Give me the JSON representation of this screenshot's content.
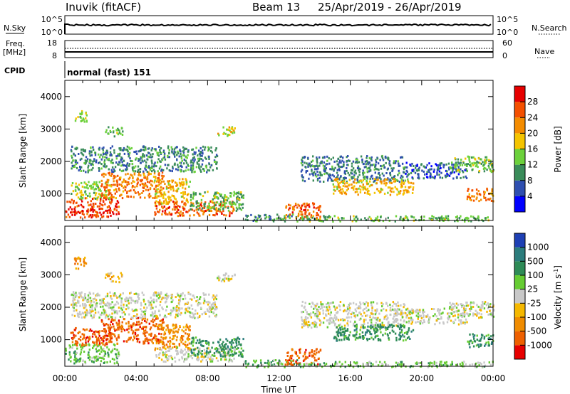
{
  "header": {
    "station": "Inuvik (fitACF)",
    "beam": "Beam 13",
    "dates": "25/Apr/2019 - 26/Apr/2019"
  },
  "nsky": {
    "label": "N.Sky",
    "ticks": [
      "10^5",
      "10^0"
    ],
    "right_label": "N.Search",
    "right_ticks": [
      "10^5",
      "10^0"
    ]
  },
  "freq": {
    "label_line1": "Freq.",
    "label_line2": "[MHz]",
    "ticks": [
      "18",
      "8"
    ],
    "right_label": "Nave",
    "right_ticks": [
      "60",
      "0"
    ]
  },
  "cpid": {
    "label": "CPID",
    "mode": "normal (fast) 151"
  },
  "colors": {
    "power_scale": [
      "#0000ff",
      "#2f4fb0",
      "#3a8c5a",
      "#6cd13c",
      "#f4c400",
      "#f48c00",
      "#f45000",
      "#e60000"
    ],
    "velocity_scale": [
      "#1e40b4",
      "#2c7d7d",
      "#2e8b57",
      "#66cc33",
      "#c8c8c8",
      "#f5b800",
      "#f08c00",
      "#ee6000",
      "#e60000"
    ]
  },
  "chart_data": [
    {
      "type": "heatmap",
      "name": "power-panel",
      "xlabel": "",
      "ylabel": "Slant Range [km]",
      "x_ticks": [
        "00:00",
        "04:00",
        "08:00",
        "12:00",
        "16:00",
        "20:00",
        "00:00"
      ],
      "xlim_hours": [
        0,
        24
      ],
      "y_ticks": [
        1000,
        2000,
        3000,
        4000
      ],
      "ylim_km": [
        180,
        4500
      ],
      "colorbar": {
        "label": "Power [dB]",
        "ticks": [
          "4",
          "8",
          "12",
          "16",
          "20",
          "24",
          "28"
        ],
        "range": [
          0,
          30
        ]
      },
      "regions": [
        {
          "t0": 0.0,
          "t1": 3.0,
          "r0": 300,
          "r1": 900,
          "v": 26
        },
        {
          "t0": 0.3,
          "t1": 2.5,
          "r0": 850,
          "r1": 1400,
          "v": 14
        },
        {
          "t0": 2.0,
          "t1": 5.5,
          "r0": 900,
          "r1": 1700,
          "v": 22
        },
        {
          "t0": 5.0,
          "t1": 7.0,
          "r0": 700,
          "r1": 1500,
          "v": 18
        },
        {
          "t0": 5.0,
          "t1": 9.5,
          "r0": 350,
          "r1": 800,
          "v": 24
        },
        {
          "t0": 7.0,
          "t1": 10.0,
          "r0": 500,
          "r1": 1100,
          "v": 12
        },
        {
          "t0": 0.3,
          "t1": 8.5,
          "r0": 1700,
          "r1": 2500,
          "v": 9
        },
        {
          "t0": 0.5,
          "t1": 1.2,
          "r0": 3200,
          "r1": 3600,
          "v": 14
        },
        {
          "t0": 2.2,
          "t1": 3.2,
          "r0": 2800,
          "r1": 3100,
          "v": 12
        },
        {
          "t0": 8.5,
          "t1": 9.5,
          "r0": 2800,
          "r1": 3100,
          "v": 16
        },
        {
          "t0": 10.0,
          "t1": 13.0,
          "r0": 180,
          "r1": 400,
          "v": 10
        },
        {
          "t0": 12.3,
          "t1": 14.3,
          "r0": 250,
          "r1": 750,
          "v": 24
        },
        {
          "t0": 13.0,
          "t1": 24.0,
          "r0": 180,
          "r1": 350,
          "v": 12
        },
        {
          "t0": 13.2,
          "t1": 19.0,
          "r0": 1400,
          "r1": 2200,
          "v": 8
        },
        {
          "t0": 15.0,
          "t1": 19.5,
          "r0": 1000,
          "r1": 1500,
          "v": 18
        },
        {
          "t0": 19.0,
          "t1": 22.5,
          "r0": 1500,
          "r1": 2000,
          "v": 6
        },
        {
          "t0": 21.5,
          "t1": 24.0,
          "r0": 1700,
          "r1": 2200,
          "v": 13
        },
        {
          "t0": 22.5,
          "t1": 24.0,
          "r0": 800,
          "r1": 1200,
          "v": 22
        }
      ]
    },
    {
      "type": "heatmap",
      "name": "velocity-panel",
      "xlabel": "Time UT",
      "ylabel": "Slant Range [km]",
      "x_ticks": [
        "00:00",
        "04:00",
        "08:00",
        "12:00",
        "16:00",
        "20:00",
        "00:00"
      ],
      "xlim_hours": [
        0,
        24
      ],
      "y_ticks": [
        1000,
        2000,
        3000,
        4000
      ],
      "ylim_km": [
        180,
        4500
      ],
      "colorbar": {
        "label": "Velocity [m s-1]",
        "ticks": [
          "1000",
          "500",
          "100",
          "25",
          "-25",
          "-100",
          "-500",
          "-1000"
        ]
      },
      "regions": [
        {
          "t0": 0.0,
          "t1": 3.0,
          "r0": 300,
          "r1": 900,
          "c": 3
        },
        {
          "t0": 0.3,
          "t1": 2.5,
          "r0": 850,
          "r1": 1400,
          "c": 7
        },
        {
          "t0": 2.0,
          "t1": 5.5,
          "r0": 900,
          "r1": 1700,
          "c": 7
        },
        {
          "t0": 5.0,
          "t1": 7.0,
          "r0": 700,
          "r1": 1500,
          "c": 6
        },
        {
          "t0": 5.0,
          "t1": 9.5,
          "r0": 350,
          "r1": 800,
          "c": 4
        },
        {
          "t0": 7.0,
          "t1": 10.0,
          "r0": 500,
          "r1": 1100,
          "c": 2
        },
        {
          "t0": 0.3,
          "t1": 8.5,
          "r0": 1700,
          "r1": 2500,
          "c": 4
        },
        {
          "t0": 0.5,
          "t1": 1.2,
          "r0": 3200,
          "r1": 3600,
          "c": 6
        },
        {
          "t0": 2.2,
          "t1": 3.2,
          "r0": 2800,
          "r1": 3100,
          "c": 5
        },
        {
          "t0": 8.5,
          "t1": 9.5,
          "r0": 2800,
          "r1": 3100,
          "c": 4
        },
        {
          "t0": 10.0,
          "t1": 13.0,
          "r0": 180,
          "r1": 400,
          "c": 3
        },
        {
          "t0": 12.3,
          "t1": 14.3,
          "r0": 250,
          "r1": 750,
          "c": 7
        },
        {
          "t0": 13.0,
          "t1": 24.0,
          "r0": 180,
          "r1": 350,
          "c": 3
        },
        {
          "t0": 13.2,
          "t1": 19.0,
          "r0": 1400,
          "r1": 2200,
          "c": 4
        },
        {
          "t0": 15.0,
          "t1": 19.5,
          "r0": 1000,
          "r1": 1500,
          "c": 2
        },
        {
          "t0": 19.0,
          "t1": 22.5,
          "r0": 1500,
          "r1": 2000,
          "c": 4
        },
        {
          "t0": 21.5,
          "t1": 24.0,
          "r0": 1700,
          "r1": 2200,
          "c": 4
        },
        {
          "t0": 22.5,
          "t1": 24.0,
          "r0": 800,
          "r1": 1200,
          "c": 2
        }
      ]
    }
  ]
}
